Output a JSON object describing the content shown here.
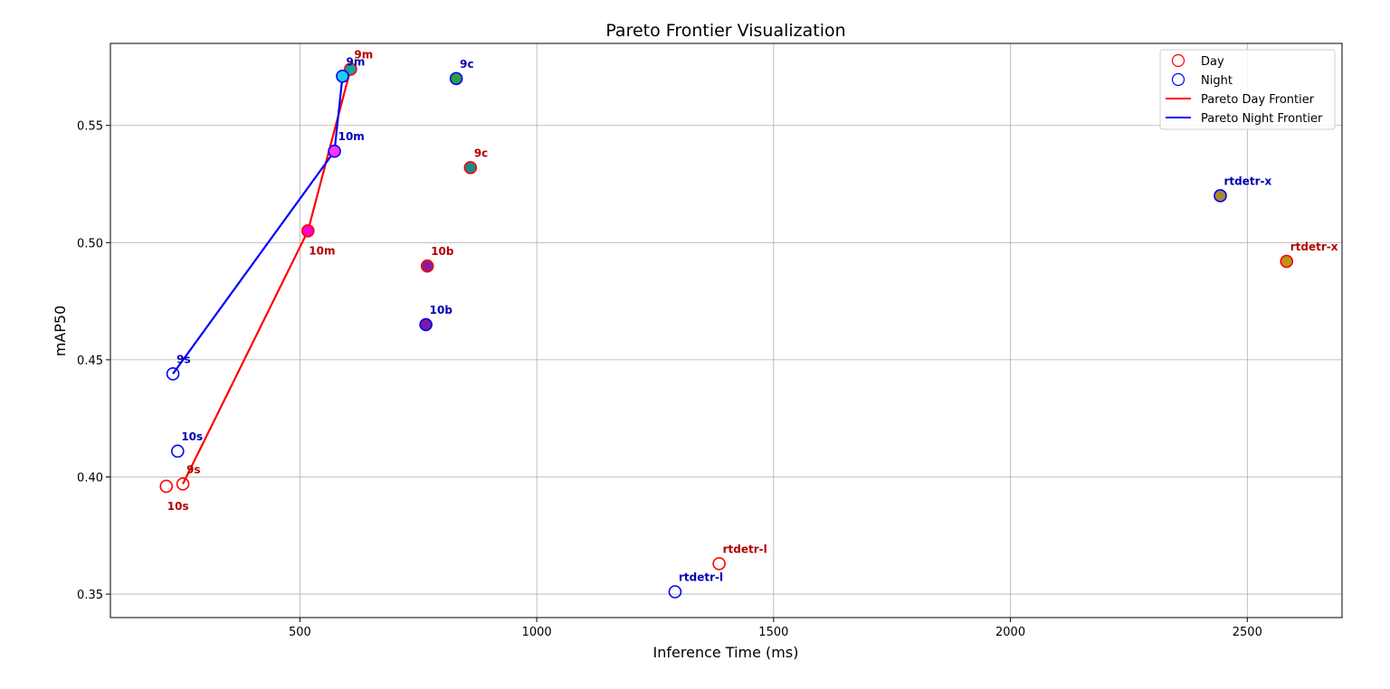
{
  "chart_data": {
    "type": "scatter",
    "title": "Pareto Frontier Visualization",
    "xlabel": "Inference Time (ms)",
    "ylabel": "mAP50",
    "xlim": [
      100,
      2700
    ],
    "ylim": [
      0.34,
      0.585
    ],
    "xticks": [
      500,
      1000,
      1500,
      2000,
      2500
    ],
    "yticks": [
      0.35,
      0.4,
      0.45,
      0.5,
      0.55
    ],
    "grid": true,
    "legend_position": "top-right",
    "legend": [
      "Day",
      "Night",
      "Pareto Day Frontier",
      "Pareto Night Frontier"
    ],
    "colors": {
      "day": "#ff0000",
      "night": "#0000ff",
      "day_label": "#b40000",
      "night_label": "#0000b4"
    },
    "series": [
      {
        "name": "Day",
        "points": [
          {
            "label": "10s",
            "x": 218,
            "y": 0.396,
            "fill": "none",
            "label_pos": "below"
          },
          {
            "label": "9s",
            "x": 253,
            "y": 0.397,
            "fill": "none",
            "label_pos": "above"
          },
          {
            "label": "10m",
            "x": 517,
            "y": 0.505,
            "fill": "#ff00c8",
            "label_pos": "below"
          },
          {
            "label": "9m",
            "x": 607,
            "y": 0.574,
            "fill": "#17a2a2",
            "label_pos": "above"
          },
          {
            "label": "10b",
            "x": 769,
            "y": 0.49,
            "fill": "#8a1a9c",
            "label_pos": "above"
          },
          {
            "label": "9c",
            "x": 860,
            "y": 0.532,
            "fill": "#1a8a8a",
            "label_pos": "above"
          },
          {
            "label": "rtdetr-l",
            "x": 1385,
            "y": 0.363,
            "fill": "none",
            "label_pos": "above"
          },
          {
            "label": "rtdetr-x",
            "x": 2583,
            "y": 0.492,
            "fill": "#b8961c",
            "label_pos": "above"
          }
        ]
      },
      {
        "name": "Night",
        "points": [
          {
            "label": "9s",
            "x": 232,
            "y": 0.444,
            "fill": "none",
            "label_pos": "above"
          },
          {
            "label": "10s",
            "x": 242,
            "y": 0.411,
            "fill": "none",
            "label_pos": "above"
          },
          {
            "label": "10m",
            "x": 573,
            "y": 0.539,
            "fill": "#ff33ff",
            "label_pos": "above"
          },
          {
            "label": "9m",
            "x": 590,
            "y": 0.571,
            "fill": "#22ccee",
            "label_pos": "above"
          },
          {
            "label": "10b",
            "x": 766,
            "y": 0.465,
            "fill": "#7a1a9c",
            "label_pos": "above"
          },
          {
            "label": "9c",
            "x": 830,
            "y": 0.57,
            "fill": "#2e9e3e",
            "label_pos": "above"
          },
          {
            "label": "rtdetr-l",
            "x": 1292,
            "y": 0.351,
            "fill": "none",
            "label_pos": "above"
          },
          {
            "label": "rtdetr-x",
            "x": 2443,
            "y": 0.52,
            "fill": "#a88a2e",
            "label_pos": "above"
          }
        ]
      },
      {
        "name": "Pareto Day Frontier",
        "x": [
          253,
          517,
          607
        ],
        "y": [
          0.397,
          0.505,
          0.574
        ]
      },
      {
        "name": "Pareto Night Frontier",
        "x": [
          232,
          573,
          590
        ],
        "y": [
          0.444,
          0.539,
          0.571
        ]
      }
    ]
  }
}
